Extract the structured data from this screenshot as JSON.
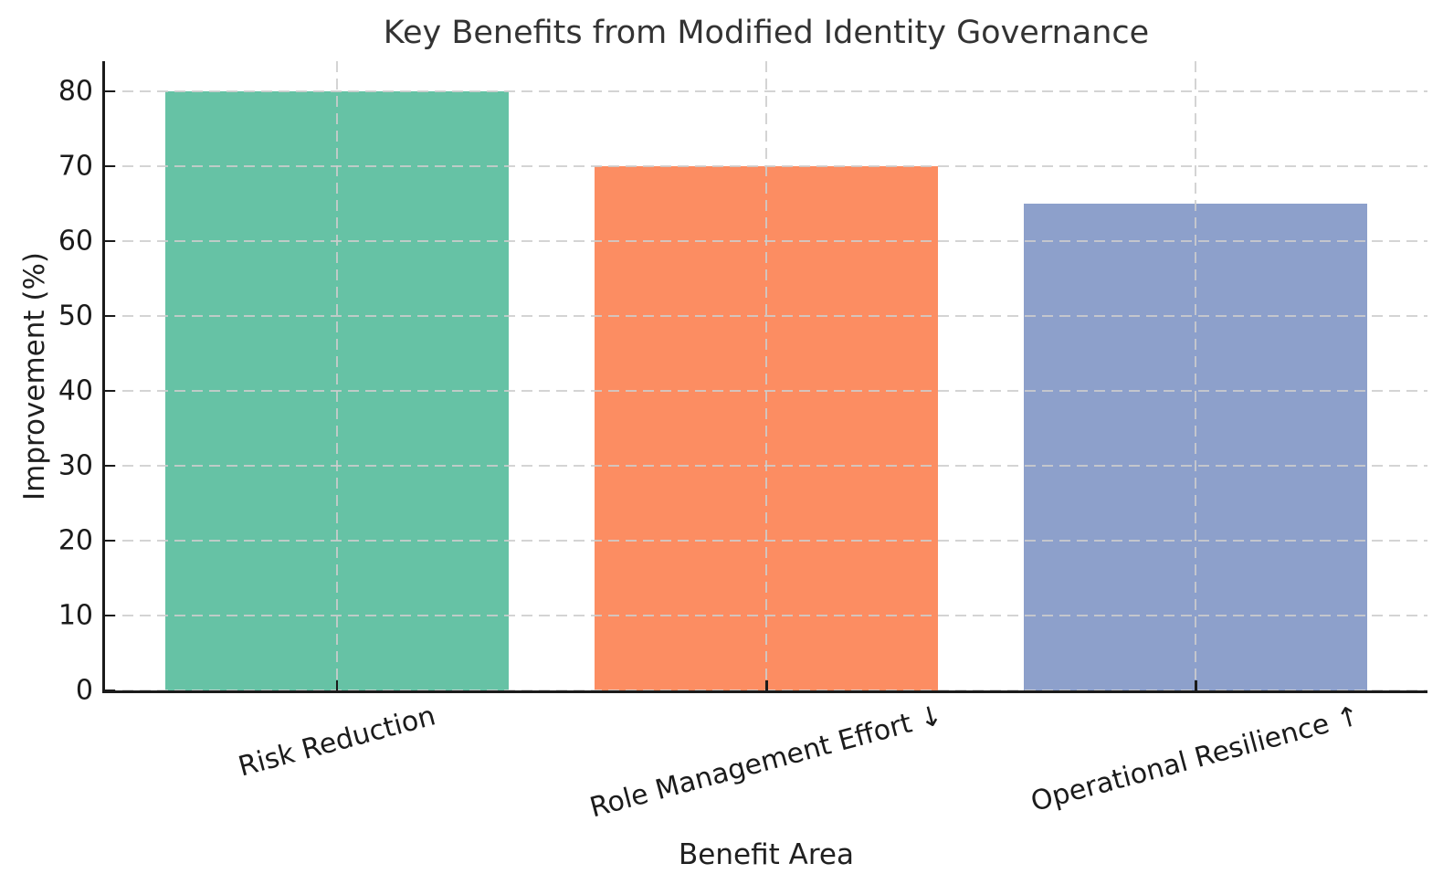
{
  "chart_data": {
    "type": "bar",
    "title": "Key Benefits from Modified Identity Governance",
    "xlabel": "Benefit Area",
    "ylabel": "Improvement (%)",
    "categories": [
      "Risk Reduction",
      "Role Management Effort ↓",
      "Operational Resilience ↑"
    ],
    "values": [
      80,
      70,
      65
    ],
    "bar_colors": [
      "#66c2a5",
      "#fc8d62",
      "#8da0cb"
    ],
    "ylim": [
      0,
      84
    ],
    "yticks": [
      0,
      10,
      20,
      30,
      40,
      50,
      60,
      70,
      80
    ],
    "xlim": [
      -0.54,
      2.54
    ],
    "bar_width_units": 0.8,
    "xtick_rotation_deg": 15,
    "grid": "both-dashed",
    "legend": "none",
    "colors": {
      "grid": "#cdcdcd",
      "spine": "#1b1b1b",
      "text": "#202020",
      "title": "#333333",
      "background": "#ffffff"
    }
  }
}
